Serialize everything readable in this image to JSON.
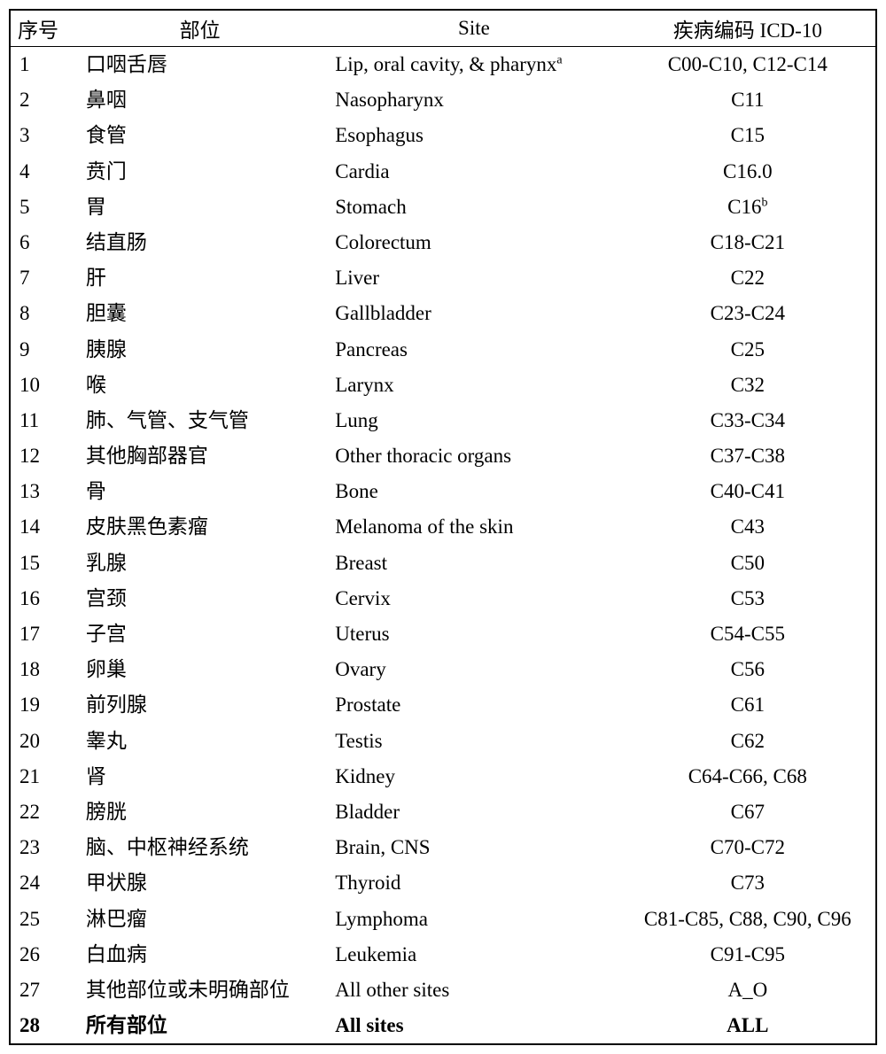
{
  "table": {
    "header": {
      "seq": "序号",
      "site_cn": "部位",
      "site_en": "Site",
      "icd": "疾病编码 ICD-10"
    },
    "rows": [
      {
        "seq": "1",
        "site_cn": "口咽舌唇",
        "site_en": "Lip, oral cavity, & pharynx",
        "site_en_sup": "a",
        "icd": "C00-C10, C12-C14",
        "bold": false
      },
      {
        "seq": "2",
        "site_cn": "鼻咽",
        "site_en": "Nasopharynx",
        "icd": "C11",
        "bold": false
      },
      {
        "seq": "3",
        "site_cn": "食管",
        "site_en": "Esophagus",
        "icd": "C15",
        "bold": false
      },
      {
        "seq": "4",
        "site_cn": "贲门",
        "site_en": "Cardia",
        "icd": "C16.0",
        "bold": false
      },
      {
        "seq": "5",
        "site_cn": "胃",
        "site_en": "Stomach",
        "icd": "C16",
        "icd_sup": "b",
        "bold": false
      },
      {
        "seq": "6",
        "site_cn": "结直肠",
        "site_en": "Colorectum",
        "icd": "C18-C21",
        "bold": false
      },
      {
        "seq": "7",
        "site_cn": "肝",
        "site_en": "Liver",
        "icd": "C22",
        "bold": false
      },
      {
        "seq": "8",
        "site_cn": "胆囊",
        "site_en": "Gallbladder",
        "icd": "C23-C24",
        "bold": false
      },
      {
        "seq": "9",
        "site_cn": "胰腺",
        "site_en": "Pancreas",
        "icd": "C25",
        "bold": false
      },
      {
        "seq": "10",
        "site_cn": "喉",
        "site_en": "Larynx",
        "icd": "C32",
        "bold": false
      },
      {
        "seq": "11",
        "site_cn": "肺、气管、支气管",
        "site_en": "Lung",
        "icd": "C33-C34",
        "bold": false
      },
      {
        "seq": "12",
        "site_cn": "其他胸部器官",
        "site_en": "Other thoracic organs",
        "icd": "C37-C38",
        "bold": false
      },
      {
        "seq": "13",
        "site_cn": "骨",
        "site_en": "Bone",
        "icd": "C40-C41",
        "bold": false
      },
      {
        "seq": "14",
        "site_cn": "皮肤黑色素瘤",
        "site_en": "Melanoma of the skin",
        "icd": "C43",
        "bold": false
      },
      {
        "seq": "15",
        "site_cn": "乳腺",
        "site_en": "Breast",
        "icd": "C50",
        "bold": false
      },
      {
        "seq": "16",
        "site_cn": "宫颈",
        "site_en": "Cervix",
        "icd": "C53",
        "bold": false
      },
      {
        "seq": "17",
        "site_cn": "子宫",
        "site_en": "Uterus",
        "icd": "C54-C55",
        "bold": false
      },
      {
        "seq": "18",
        "site_cn": "卵巢",
        "site_en": "Ovary",
        "icd": "C56",
        "bold": false
      },
      {
        "seq": "19",
        "site_cn": "前列腺",
        "site_en": "Prostate",
        "icd": "C61",
        "bold": false
      },
      {
        "seq": "20",
        "site_cn": "睾丸",
        "site_en": "Testis",
        "icd": "C62",
        "bold": false
      },
      {
        "seq": "21",
        "site_cn": "肾",
        "site_en": "Kidney",
        "icd": "C64-C66, C68",
        "bold": false
      },
      {
        "seq": "22",
        "site_cn": "膀胱",
        "site_en": "Bladder",
        "icd": "C67",
        "bold": false
      },
      {
        "seq": "23",
        "site_cn": "脑、中枢神经系统",
        "site_en": "Brain, CNS",
        "icd": "C70-C72",
        "bold": false
      },
      {
        "seq": "24",
        "site_cn": "甲状腺",
        "site_en": "Thyroid",
        "icd": "C73",
        "bold": false
      },
      {
        "seq": "25",
        "site_cn": "淋巴瘤",
        "site_en": "Lymphoma",
        "icd": "C81-C85, C88, C90, C96",
        "bold": false
      },
      {
        "seq": "26",
        "site_cn": "白血病",
        "site_en": "Leukemia",
        "icd": "C91-C95",
        "bold": false
      },
      {
        "seq": "27",
        "site_cn": "其他部位或未明确部位",
        "site_en": "All other sites",
        "icd": "A_O",
        "bold": false
      },
      {
        "seq": "28",
        "site_cn": "所有部位",
        "site_en": "All sites",
        "icd": "ALL",
        "bold": true
      }
    ],
    "styles": {
      "border_color": "#000000",
      "background_color": "#ffffff",
      "text_color": "#000000",
      "font_size_pt": 17,
      "header_font_size_pt": 17
    }
  }
}
